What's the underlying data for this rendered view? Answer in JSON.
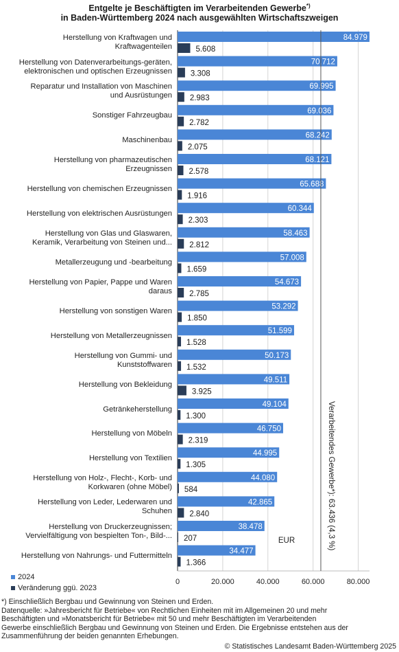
{
  "title_line1": "Entgelte je Beschäftigten im Verarbeitenden Gewerbe",
  "title_sup": "*)",
  "title_line2": "in Baden-Württemberg 2024 nach ausgewählten Wirtschaftszweigen",
  "colors": {
    "series_2024": "#4a86d6",
    "series_change": "#2a3d58",
    "refline": "#555555"
  },
  "chart_data": {
    "type": "bar",
    "orientation": "horizontal",
    "categories": [
      [
        "Herstellung von Kraftwagen und",
        "Kraftwagenteilen"
      ],
      [
        "Herstellung von Datenverarbeitungs-geräten,",
        "elektronischen und optischen Erzeugnissen"
      ],
      [
        "Reparatur und Installation von Maschinen",
        "und Ausrüstungen"
      ],
      [
        "Sonstiger Fahrzeugbau"
      ],
      [
        "Maschinenbau"
      ],
      [
        "Herstellung von pharmazeutischen",
        "Erzeugnissen"
      ],
      [
        "Herstellung von chemischen Erzeugnissen"
      ],
      [
        "Herstellung von elektrischen Ausrüstungen"
      ],
      [
        "Herstellung von Glas und Glaswaren,",
        "Keramik, Verarbeitung von Steinen und..."
      ],
      [
        "Metallerzeugung und -bearbeitung"
      ],
      [
        "Herstellung von Papier, Pappe und Waren",
        "daraus"
      ],
      [
        "Herstellung von sonstigen Waren"
      ],
      [
        "Herstellung von Metallerzeugnissen"
      ],
      [
        "Herstellung von Gummi- und",
        "Kunststoffwaren"
      ],
      [
        "Herstellung von Bekleidung"
      ],
      [
        "Getränkeherstellung"
      ],
      [
        "Herstellung von Möbeln"
      ],
      [
        "Herstellung von Textilien"
      ],
      [
        "Herstellung von Holz-, Flecht-, Korb- und",
        "Korkwaren (ohne Möbel)"
      ],
      [
        "Herstellung von Leder, Lederwaren und",
        "Schuhen"
      ],
      [
        "Herstellung von Druckerzeugnissen;",
        "Vervielfältigung von bespielten Ton-, Bild-..."
      ],
      [
        "Herstellung von Nahrungs- und Futtermitteln"
      ]
    ],
    "series": [
      {
        "name": "2024",
        "values": [
          84979,
          70712,
          69995,
          69036,
          68242,
          68121,
          65688,
          60344,
          58463,
          57008,
          54673,
          53292,
          51599,
          50173,
          49511,
          49104,
          46750,
          44995,
          44080,
          42865,
          38478,
          34477
        ],
        "labels": [
          "84.979",
          "70.712",
          "69.995",
          "69.036",
          "68.242",
          "68.121",
          "65.688",
          "60.344",
          "58.463",
          "57.008",
          "54.673",
          "53.292",
          "51.599",
          "50.173",
          "49.511",
          "49.104",
          "46.750",
          "44.995",
          "44.080",
          "42.865",
          "38.478",
          "34.477"
        ]
      },
      {
        "name": "Veränderung ggü. 2023",
        "values": [
          5608,
          3308,
          2983,
          2782,
          2075,
          2578,
          1916,
          2303,
          2812,
          1659,
          2785,
          1850,
          1528,
          1532,
          3925,
          1300,
          2319,
          1305,
          584,
          2840,
          207,
          1366
        ],
        "labels": [
          "5.608",
          "3.308",
          "2.983",
          "2.782",
          "2.075",
          "2.578",
          "1.916",
          "2.303",
          "2.812",
          "1.659",
          "2.785",
          "1.850",
          "1.528",
          "1.532",
          "3.925",
          "1.300",
          "2.319",
          "1.305",
          "584",
          "2.840",
          "207",
          "1.366"
        ]
      }
    ],
    "xlim": [
      0,
      85000
    ],
    "xticks": [
      0,
      20000,
      40000,
      60000,
      80000
    ],
    "xtick_labels": [
      "0",
      "20.000",
      "40.000",
      "60.000",
      "80.000"
    ],
    "grid": true,
    "unit_label": "EUR",
    "reference_line": {
      "value": 63436,
      "label": "Verarbeitendes Gewerbe*): 63.436 (4,3 %)"
    }
  },
  "legend": {
    "item1": "2024",
    "item2": "Veränderung ggü. 2023"
  },
  "footnote": [
    "*) Einschließlich Bergbau und Gewinnung von Steinen und Erden.",
    "Datenquelle: »Jahresbericht für Betriebe« von Rechtlichen Einheiten mit im Allgemeinen 20 und mehr",
    "Beschäftigten und »Monatsbericht für Betriebe« mit 50 und mehr Beschäftigten im Verarbeitenden",
    "Gewerbe einschließlich Bergbau und Gewinnung von Steinen und Erden. Die Ergebnisse entstehen aus der",
    "Zusammenführung der beiden genannten Erhebungen."
  ],
  "source": "© Statistisches Landesamt Baden-Württemberg 2025"
}
